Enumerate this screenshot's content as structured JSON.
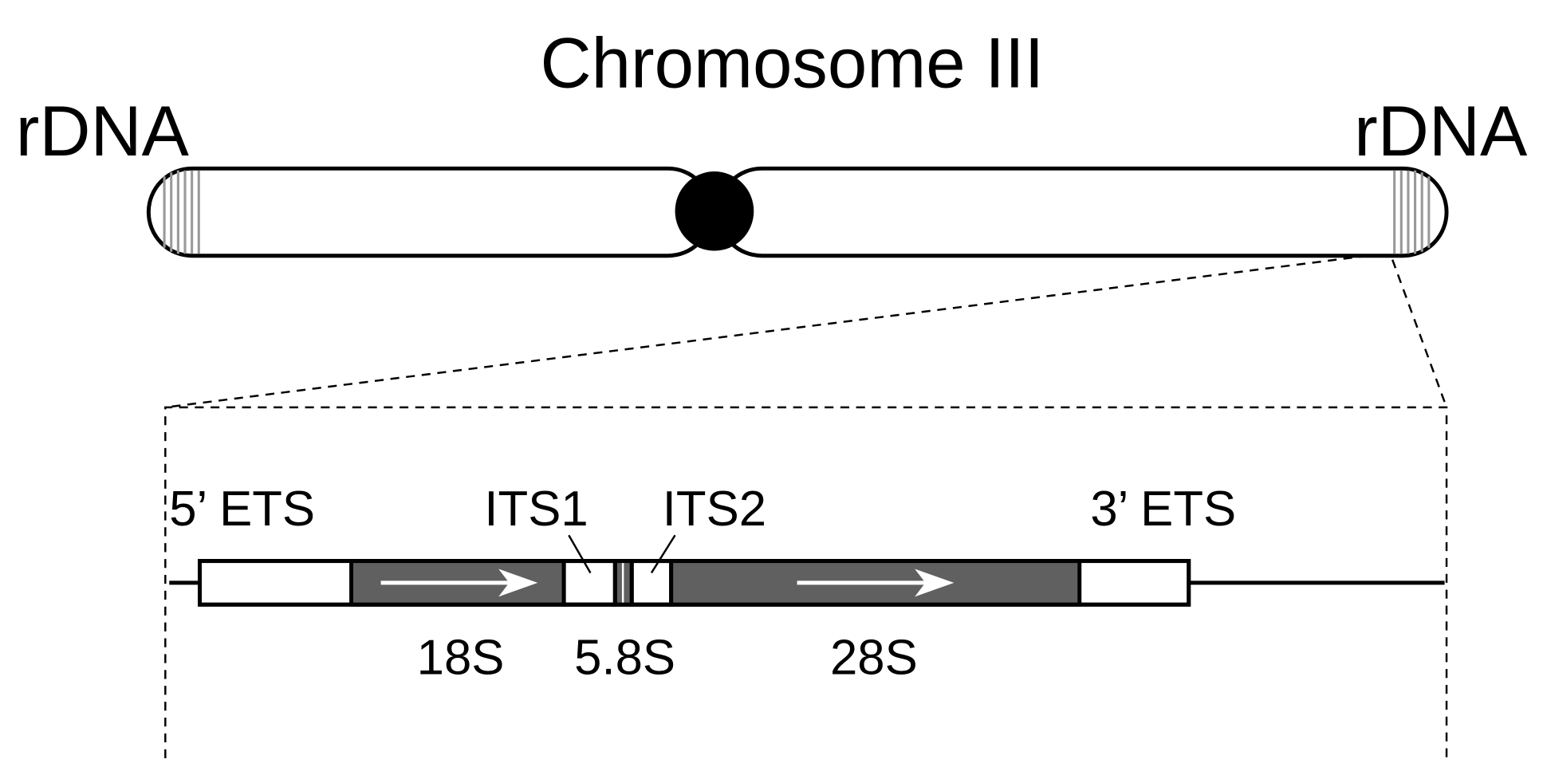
{
  "title": "Chromosome III",
  "chromosome": {
    "left_label": "rDNA",
    "right_label": "rDNA"
  },
  "rdna_unit": {
    "upper_labels": [
      "5’ ETS",
      "ITS1",
      "ITS2",
      "3’ ETS"
    ],
    "lower_labels": [
      "18S",
      "5.8S",
      "28S"
    ]
  }
}
